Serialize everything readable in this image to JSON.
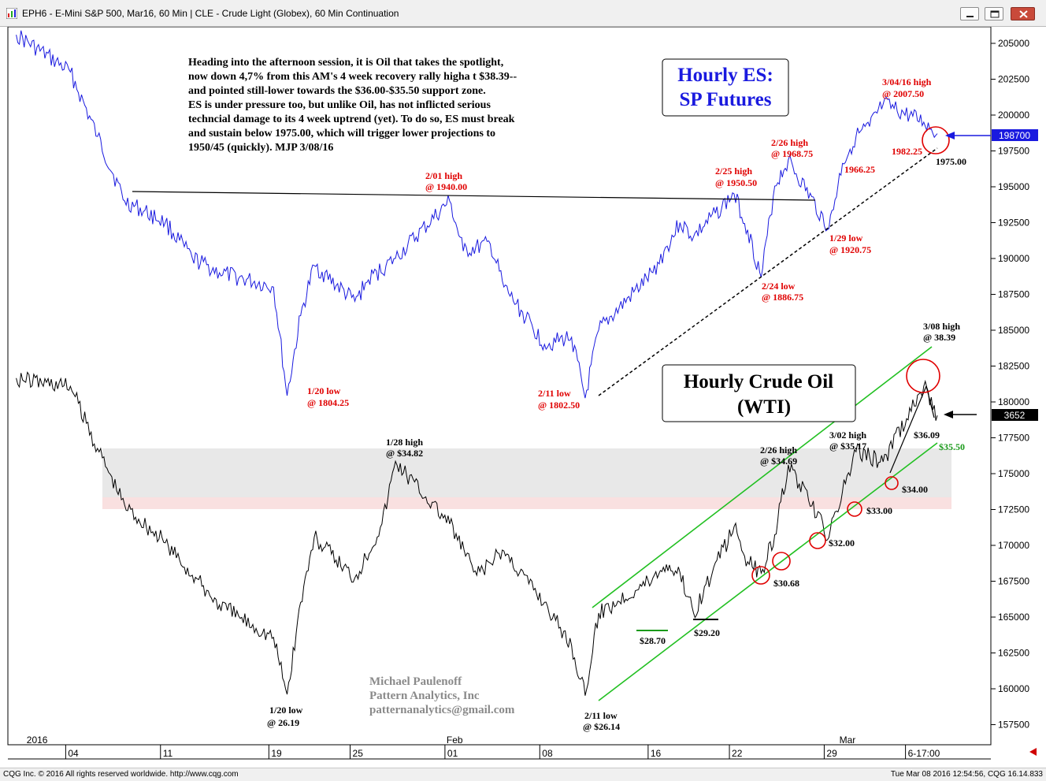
{
  "window": {
    "title": "EPH6 - E-Mini S&P 500, Mar16, 60 Min  |  CLE - Crude Light (Globex), 60 Min Continuation"
  },
  "footer": {
    "copyright": "CQG Inc. © 2016 All rights reserved worldwide. http://www.cqg.com",
    "status": "Tue Mar 08 2016 12:54:56, CQG 16.14.833"
  },
  "colors": {
    "es_line": "#1a1adf",
    "oil_line": "#000000",
    "annotation_red": "#e00000",
    "channel_green": "#22c022",
    "title_box_blue": "#1a1adf"
  },
  "commentary": {
    "lines": [
      "Heading into the afternoon session, it is Oil that takes the spotlight,",
      "now down 4,7% from this AM's 4 week recovery rally higha t $38.39--",
      "and pointed still-lower towards the $36.00-$35.50 support zone.",
      "ES is under pressure too, but unlike Oil, has not inflicted serious",
      "techncial damage to its 4 week uptrend (yet). To do so, ES must break",
      "and sustain below 1975.00, which will trigger lower projections to",
      "1950/45 (quickly).  MJP 3/08/16"
    ]
  },
  "es_title": {
    "line1": "Hourly ES:",
    "line2": "SP Futures"
  },
  "oil_title": {
    "line1": "Hourly Crude Oil",
    "line2": "(WTI)"
  },
  "credit": {
    "name": "Michael Paulenoff",
    "company": "Pattern Analytics, Inc",
    "email": "patternanalytics@gmail.com"
  },
  "price_tags": {
    "es_last": "198700",
    "oil_last": "3652"
  },
  "chart_data": [
    {
      "type": "line",
      "title": "Hourly ES: SP Futures",
      "series": [
        {
          "name": "EPH6 - E-Mini S&P 500, Mar16, 60 Min",
          "x": [
            "2015-12-31",
            "2016-01-04",
            "2016-01-06",
            "2016-01-08",
            "2016-01-11",
            "2016-01-13",
            "2016-01-15",
            "2016-01-19",
            "2016-01-20",
            "2016-01-21",
            "2016-01-22",
            "2016-01-25",
            "2016-01-26",
            "2016-01-28",
            "2016-02-01",
            "2016-02-02",
            "2016-02-04",
            "2016-02-05",
            "2016-02-08",
            "2016-02-10",
            "2016-02-11",
            "2016-02-12",
            "2016-02-16",
            "2016-02-18",
            "2016-02-19",
            "2016-02-22",
            "2016-02-23",
            "2016-02-24",
            "2016-02-25",
            "2016-02-26",
            "2016-02-29",
            "2016-03-01",
            "2016-03-02",
            "2016-03-03",
            "2016-03-04",
            "2016-03-07",
            "2016-03-08"
          ],
          "y": [
            2056,
            2030,
            1985,
            1940,
            1925,
            1900,
            1890,
            1880,
            1804.25,
            1860,
            1895,
            1870,
            1885,
            1900,
            1940,
            1905,
            1910,
            1880,
            1840,
            1845,
            1802.5,
            1850,
            1890,
            1925,
            1915,
            1945,
            1920,
            1886.75,
            1950.5,
            1968.75,
            1920.75,
            1966.25,
            1985,
            1992,
            2007.5,
            1995,
            1987
          ]
        }
      ],
      "y_ticks": [
        "205000",
        "202500",
        "200000",
        "197500",
        "195000",
        "192500",
        "190000",
        "187500",
        "185000",
        "182500",
        "180000",
        "177500",
        "175000",
        "172500",
        "170000",
        "167500",
        "165000",
        "162500",
        "160000",
        "157500"
      ],
      "annotations": [
        {
          "line1": "1/20 low",
          "line2": "@ 1804.25"
        },
        {
          "line1": "2/01 high",
          "line2": "@ 1940.00"
        },
        {
          "line1": "2/11 low",
          "line2": "@ 1802.50"
        },
        {
          "line1": "2/24 low",
          "line2": "@ 1886.75"
        },
        {
          "line1": "2/25 high",
          "line2": "@ 1950.50"
        },
        {
          "line1": "2/26 high",
          "line2": "@ 1968.75"
        },
        {
          "line1": "1/29 low",
          "line2": "@ 1920.75"
        },
        {
          "line1": "3/04/16 high",
          "line2": "@ 2007.50"
        },
        {
          "line1": "1966.25",
          "line2": ""
        },
        {
          "line1": "1982.25",
          "line2": ""
        },
        {
          "line1": "1975.00",
          "line2": ""
        }
      ]
    },
    {
      "type": "line",
      "title": "Hourly Crude Oil (WTI)",
      "series": [
        {
          "name": "CLE - Crude Light (Globex), 60 Min Continuation",
          "x": [
            "2015-12-31",
            "2016-01-04",
            "2016-01-06",
            "2016-01-08",
            "2016-01-11",
            "2016-01-13",
            "2016-01-15",
            "2016-01-19",
            "2016-01-20",
            "2016-01-21",
            "2016-01-22",
            "2016-01-25",
            "2016-01-27",
            "2016-01-28",
            "2016-02-01",
            "2016-02-03",
            "2016-02-05",
            "2016-02-08",
            "2016-02-10",
            "2016-02-11",
            "2016-02-12",
            "2016-02-16",
            "2016-02-17",
            "2016-02-18",
            "2016-02-19",
            "2016-02-22",
            "2016-02-23",
            "2016-02-24",
            "2016-02-25",
            "2016-02-26",
            "2016-02-29",
            "2016-03-01",
            "2016-03-02",
            "2016-03-03",
            "2016-03-04",
            "2016-03-07",
            "2016-03-08"
          ],
          "y": [
            37.9,
            37.6,
            35.3,
            33.2,
            31.8,
            30.6,
            29.5,
            28.3,
            26.19,
            29.6,
            32.0,
            30.5,
            32.5,
            34.82,
            32.5,
            30.6,
            31.5,
            29.6,
            28.0,
            26.14,
            29.2,
            30.5,
            31.0,
            30.7,
            29.2,
            32.4,
            31.1,
            30.68,
            32.1,
            34.69,
            32.0,
            33.7,
            35.17,
            35.0,
            34.8,
            37.6,
            36.52
          ]
        }
      ],
      "annotations": [
        {
          "line1": "1/20 low",
          "line2": "@ 26.19"
        },
        {
          "line1": "1/28 high",
          "line2": "@ $34.82"
        },
        {
          "line1": "2/11 low",
          "line2": "@ $26.14"
        },
        {
          "line1": "2/26 high",
          "line2": "@ $34.69"
        },
        {
          "line1": "3/02 high",
          "line2": "@ $35.17"
        },
        {
          "line1": "3/08 high",
          "line2": "@ 38.39"
        },
        {
          "line1": "$28.70",
          "line2": ""
        },
        {
          "line1": "$29.20",
          "line2": ""
        },
        {
          "line1": "$30.68",
          "line2": ""
        },
        {
          "line1": "$32.00",
          "line2": ""
        },
        {
          "line1": "$33.00",
          "line2": ""
        },
        {
          "line1": "$34.00",
          "line2": ""
        },
        {
          "line1": "$36.09",
          "line2": ""
        },
        {
          "line1": "$35.50",
          "line2": ""
        }
      ]
    }
  ],
  "x_axis": {
    "ticks": [
      "04",
      "11",
      "19",
      "25",
      "01",
      "08",
      "16",
      "22",
      "29",
      "6-17:00"
    ],
    "periods": [
      "2016",
      "Feb",
      "Mar"
    ]
  }
}
